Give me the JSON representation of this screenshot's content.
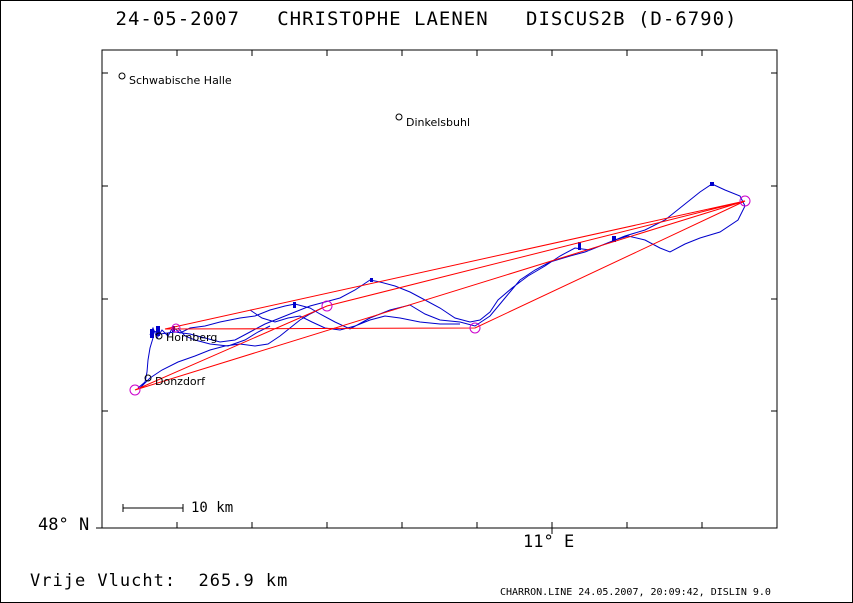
{
  "header": {
    "title": "24-05-2007   CHRISTOPHE LAENEN   DISCUS2B (D-6790)"
  },
  "axes": {
    "lat_label": "48° N",
    "lon_label": "11° E"
  },
  "scale_bar": {
    "label": "10 km"
  },
  "towns": [
    {
      "name": "Schwabische Halle"
    },
    {
      "name": "Dinkelsbuhl"
    },
    {
      "name": "Hornberg"
    },
    {
      "name": "Donzdorf"
    }
  ],
  "summary": {
    "distance_text": "Vrije Vlucht:  265.9 km"
  },
  "footer": {
    "text": "CHARRON.LINE 24.05.2007, 20:09:42, DISLIN 9.0"
  },
  "colors": {
    "track": "#0000cc",
    "task": "#ff0000",
    "turnpoint": "#cc00cc",
    "frame": "#000000"
  },
  "map": {
    "track_color_name": "blue",
    "task_color_name": "red",
    "turnpoint_marker": "circle"
  }
}
